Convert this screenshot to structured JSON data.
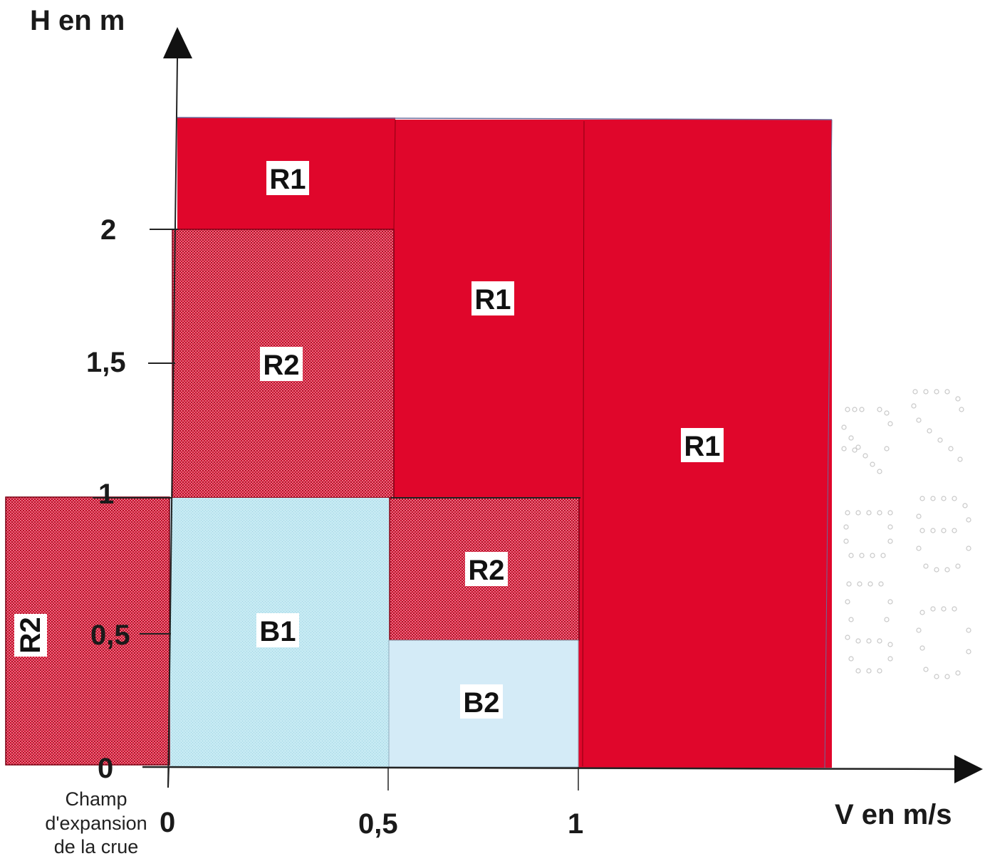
{
  "axes": {
    "y_title": "H en m",
    "x_title": "V en m/s",
    "y_ticks": [
      "0",
      "0,5",
      "1",
      "1,5",
      "2"
    ],
    "x_ticks": [
      "0",
      "0,5",
      "1"
    ],
    "x_note": [
      "Champ",
      "d'expansion",
      "de la crue"
    ]
  },
  "zones": [
    {
      "id": "r1-top-left",
      "label": "R1",
      "class": "R1",
      "v_range": [
        0,
        0.5
      ],
      "h_range": [
        2,
        2.4
      ]
    },
    {
      "id": "r2-upper-left",
      "label": "R2",
      "class": "R2",
      "v_range": [
        0,
        0.5
      ],
      "h_range": [
        1,
        2
      ]
    },
    {
      "id": "r1-middle",
      "label": "R1",
      "class": "R1",
      "v_range": [
        0.5,
        1
      ],
      "h_range": [
        1,
        2.4
      ]
    },
    {
      "id": "r1-right",
      "label": "R1",
      "class": "R1",
      "v_range": [
        1,
        1.6
      ],
      "h_range": [
        0,
        2.4
      ]
    },
    {
      "id": "r2-middle",
      "label": "R2",
      "class": "R2",
      "v_range": [
        0.5,
        1
      ],
      "h_range": [
        0.47,
        1
      ]
    },
    {
      "id": "b1",
      "label": "B1",
      "class": "B1",
      "v_range": [
        0,
        0.5
      ],
      "h_range": [
        0,
        1
      ]
    },
    {
      "id": "b2",
      "label": "B2",
      "class": "B2",
      "v_range": [
        0.5,
        1
      ],
      "h_range": [
        0,
        0.47
      ]
    },
    {
      "id": "r2-expansion",
      "label": "R2",
      "class": "R2",
      "v_range": [
        "champ d'expansion",
        "champ d'expansion"
      ],
      "h_range": [
        0,
        1
      ]
    }
  ],
  "colors": {
    "R1": "#e0062b",
    "R2_base": "#e85a70",
    "R2_dot": "#b80a25",
    "B1": "#c8ecf4",
    "B2": "#d4ebf7",
    "axis": "#222222"
  }
}
